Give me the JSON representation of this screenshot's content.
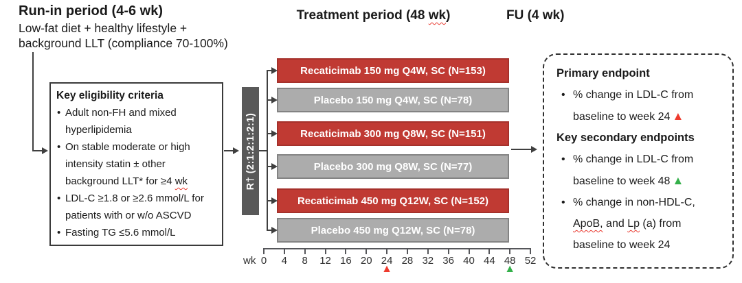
{
  "colors": {
    "drug_bar": "#c03a33",
    "drug_bar_border": "#a5312b",
    "placebo_bar": "#acacac",
    "placebo_bar_border": "#838383",
    "randomization_bar": "#595959",
    "marker_red": "#ee3b2e",
    "marker_green": "#34b04a",
    "line": "#3f3f3f"
  },
  "header": {
    "run_in_title": "Run-in period (4-6 wk)",
    "run_in_sub_lines": [
      "Low-fat diet + healthy lifestyle +",
      "background LLT (compliance 70-100%)"
    ],
    "treatment_title": "Treatment period (48 ~wk~)",
    "fu_title": "FU (4 wk)"
  },
  "eligibility": {
    "title": "Key eligibility criteria",
    "items": [
      "Adult non-FH and mixed hyperlipidemia",
      "On stable moderate or high intensity statin ± other background LLT* for ≥4 ~wk~",
      "LDL-C ≥1.8 or ≥2.6 mmol/L for patients with or w/o ASCVD",
      "Fasting TG ≤5.6 mmol/L"
    ]
  },
  "randomization": {
    "label": "R† (2:1:2:1:2:1)"
  },
  "arms": [
    {
      "type": "drug",
      "label": "Recaticimab 150 mg Q4W, SC (N=153)"
    },
    {
      "type": "placebo",
      "label": "Placebo 150 mg Q4W, SC (N=78)"
    },
    {
      "type": "drug",
      "label": "Recaticimab 300 mg Q8W, SC (N=151)"
    },
    {
      "type": "placebo",
      "label": "Placebo 300 mg Q8W, SC (N=77)"
    },
    {
      "type": "drug",
      "label": "Recaticimab 450 mg Q12W, SC (N=152)"
    },
    {
      "type": "placebo",
      "label": "Placebo 450 mg Q12W, SC (N=78)"
    }
  ],
  "timeline": {
    "unit_label": "wk",
    "ticks": [
      "0",
      "4",
      "8",
      "12",
      "16",
      "20",
      "24",
      "28",
      "32",
      "36",
      "40",
      "44",
      "48",
      "52"
    ],
    "markers": [
      {
        "week": "24",
        "glyph": "▲",
        "color_key": "marker_red"
      },
      {
        "week": "48",
        "glyph": "▲",
        "color_key": "marker_green"
      }
    ]
  },
  "endpoints": {
    "primary_title": "Primary endpoint",
    "primary_items": [
      {
        "text": "% change in LDL-C from baseline to week 24",
        "marker": "▲",
        "marker_color_key": "marker_red"
      }
    ],
    "secondary_title": "Key secondary endpoints",
    "secondary_items": [
      {
        "text": "% change in LDL-C from baseline to week 48",
        "marker": "▲",
        "marker_color_key": "marker_green"
      },
      {
        "text": "% change in non-HDL-C, ~ApoB,~ and ~Lp~ (a) from baseline to week 24",
        "marker": "",
        "marker_color_key": ""
      }
    ]
  }
}
